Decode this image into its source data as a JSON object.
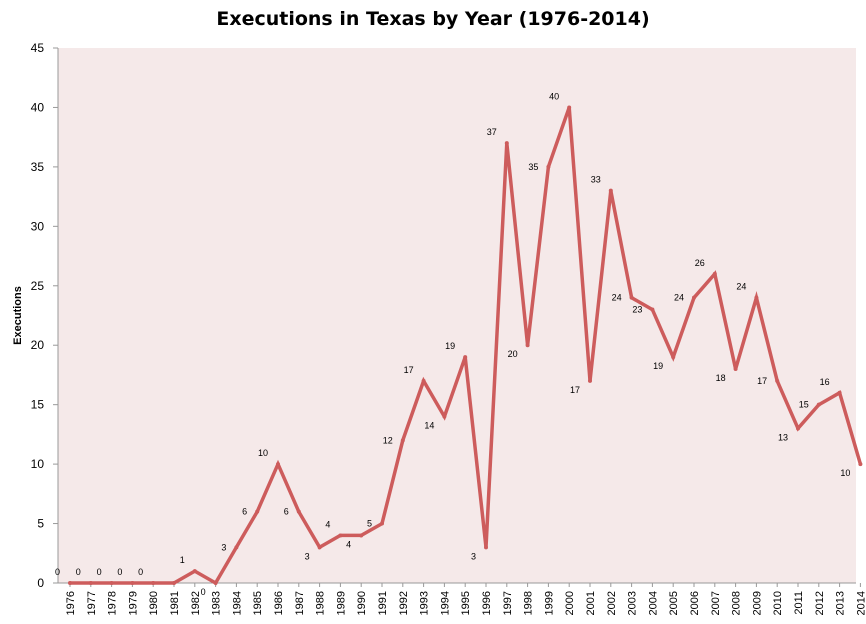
{
  "colors": {
    "plot_background": "#f5e9e9",
    "line": "#cd5c5c",
    "axis": "#999999"
  },
  "chart_data": {
    "type": "line",
    "title": "Executions in Texas by Year (1976-2014)",
    "xlabel": "",
    "ylabel": "Executions",
    "ylim": [
      0,
      45
    ],
    "yticks": [
      0,
      5,
      10,
      15,
      20,
      25,
      30,
      35,
      40,
      45
    ],
    "grid": false,
    "legend": "none",
    "categories": [
      "1976",
      "1977",
      "1978",
      "1979",
      "1980",
      "1981",
      "1982",
      "1983",
      "1984",
      "1985",
      "1986",
      "1987",
      "1988",
      "1989",
      "1990",
      "1991",
      "1992",
      "1993",
      "1994",
      "1995",
      "1996",
      "1997",
      "1998",
      "1999",
      "2000",
      "2001",
      "2002",
      "2003",
      "2004",
      "2005",
      "2006",
      "2007",
      "2008",
      "2009",
      "2010",
      "2011",
      "2012",
      "2013",
      "2014"
    ],
    "values": [
      0,
      0,
      0,
      0,
      0,
      0,
      1,
      0,
      3,
      6,
      10,
      6,
      3,
      4,
      4,
      5,
      12,
      17,
      14,
      19,
      3,
      37,
      20,
      35,
      40,
      17,
      33,
      24,
      23,
      19,
      24,
      26,
      18,
      24,
      17,
      13,
      15,
      16,
      10
    ],
    "data_labels": [
      "0",
      "0",
      "0",
      "0",
      "0",
      "",
      "1",
      "0",
      "3",
      "6",
      "10",
      "6",
      "3",
      "4",
      "4",
      "5",
      "12",
      "17",
      "14",
      "19",
      "3",
      "37",
      "20",
      "35",
      "40",
      "17",
      "33",
      "24",
      "23",
      "19",
      "24",
      "26",
      "18",
      "24",
      "17",
      "13",
      "15",
      "16",
      "10"
    ]
  }
}
